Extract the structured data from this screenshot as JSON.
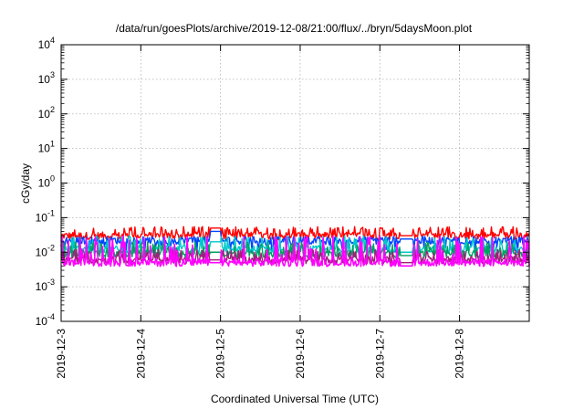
{
  "chart_data": {
    "type": "line",
    "title": "/data/run/goesPlots/archive/2019-12-08/21:00/flux/../bryn/5daysMoon.plot",
    "xlabel": "Coordinated Universal Time (UTC)",
    "ylabel": "cGy/day",
    "y_scale": "log",
    "ylim": [
      0.0001,
      10000
    ],
    "y_ticks": [
      {
        "base": "10",
        "exp": "-4"
      },
      {
        "base": "10",
        "exp": "-3"
      },
      {
        "base": "10",
        "exp": "-2"
      },
      {
        "base": "10",
        "exp": "-1"
      },
      {
        "base": "10",
        "exp": "0"
      },
      {
        "base": "10",
        "exp": "1"
      },
      {
        "base": "10",
        "exp": "2"
      },
      {
        "base": "10",
        "exp": "3"
      },
      {
        "base": "10",
        "exp": "4"
      }
    ],
    "xlim": [
      "2019-12-03",
      "2019-12-08 21:00"
    ],
    "x_ticks": [
      "2019-12-3",
      "2019-12-4",
      "2019-12-5",
      "2019-12-6",
      "2019-12-7",
      "2019-12-8"
    ],
    "grid": true,
    "legend": "none",
    "series": [
      {
        "color": "#ff0000",
        "baseline": 0.03,
        "min": 0.02,
        "max": 0.055,
        "spikes_down": false
      },
      {
        "color": "#0044ff",
        "baseline": 0.022,
        "min": 0.01,
        "max": 0.045,
        "spikes_down": true
      },
      {
        "color": "#00c8c8",
        "baseline": 0.012,
        "min": 0.007,
        "max": 0.03,
        "spikes_down": false
      },
      {
        "color": "#00a060",
        "baseline": 0.009,
        "min": 0.006,
        "max": 0.02,
        "spikes_down": false
      },
      {
        "color": "#a0207a",
        "baseline": 0.006,
        "min": 0.004,
        "max": 0.012,
        "spikes_down": false
      },
      {
        "color": "#ff00ff",
        "baseline": 0.005,
        "min": 0.003,
        "max": 0.03,
        "spikes_down": false
      }
    ],
    "flat_segments": [
      {
        "start": "2019-12-4 21:00",
        "end": "2019-12-5 00:00",
        "values": [
          0.05,
          0.04,
          0.02,
          0.01,
          0.006,
          0.005
        ]
      },
      {
        "start": "2019-12-7 06:00",
        "end": "2019-12-7 10:00",
        "values": [
          0.03,
          0.024,
          0.01,
          0.008,
          0.005,
          0.004
        ]
      }
    ]
  }
}
